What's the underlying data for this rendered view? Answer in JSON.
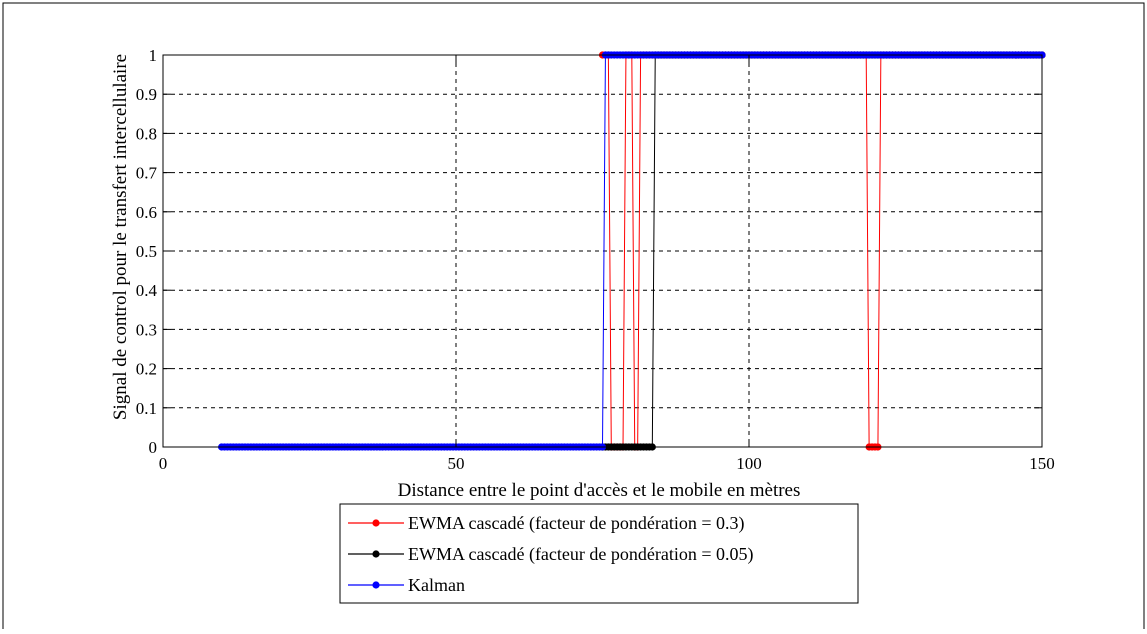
{
  "chart_data": {
    "type": "line",
    "title": "",
    "xlabel": "Distance entre le point d'accès et le mobile en mètres",
    "ylabel": "Signal de control pour le transfert intercellulaire",
    "xlim": [
      0,
      150
    ],
    "ylim": [
      0,
      1
    ],
    "xticks": [
      0,
      50,
      100,
      150
    ],
    "yticks": [
      0,
      0.1,
      0.2,
      0.3,
      0.4,
      0.5,
      0.6,
      0.7,
      0.8,
      0.9,
      1
    ],
    "xtick_labels": [
      "0",
      "50",
      "100",
      "150"
    ],
    "ytick_labels": [
      "0",
      "0.1",
      "0.2",
      "0.3",
      "0.4",
      "0.5",
      "0.6",
      "0.7",
      "0.8",
      "0.9",
      "1"
    ],
    "grid": true,
    "legend_position": "below",
    "series": [
      {
        "name": "EWMA cascadé (facteur de pondération = 0.3)",
        "color": "#ff0000",
        "x": [
          75,
          76,
          76.5,
          78.5,
          79,
          80,
          80.5,
          81,
          81.5,
          120,
          120.5,
          122,
          122.5,
          150
        ],
        "y": [
          1,
          1,
          0,
          0,
          1,
          1,
          0,
          0,
          1,
          1,
          0,
          0,
          1,
          1
        ]
      },
      {
        "name": "EWMA cascadé (facteur de pondération = 0.05)",
        "color": "#000000",
        "x": [
          75,
          83.5,
          84,
          150
        ],
        "y": [
          0,
          0,
          1,
          1
        ]
      },
      {
        "name": "Kalman",
        "color": "#0000ff",
        "x": [
          10,
          75,
          75.5,
          150
        ],
        "y": [
          0,
          0,
          1,
          1
        ]
      }
    ]
  }
}
